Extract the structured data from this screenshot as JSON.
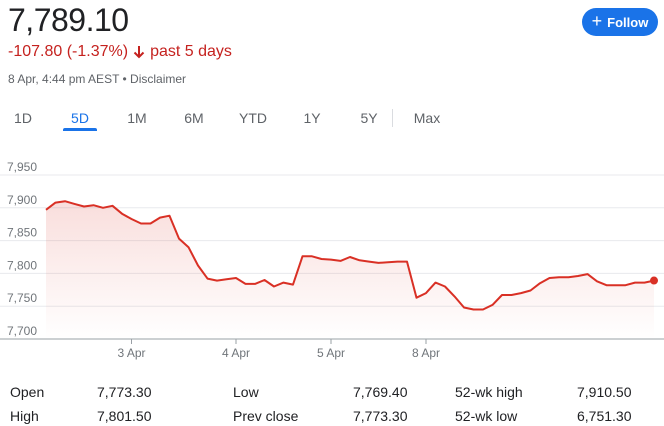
{
  "quote": {
    "price": "7,789.10",
    "change": "-107.80 (-1.37%)",
    "period": "past 5 days",
    "meta": "8 Apr, 4:44 pm AEST • Disclaimer"
  },
  "follow_button": {
    "label": "Follow"
  },
  "tabs": [
    {
      "label": "1D",
      "active": false
    },
    {
      "label": "5D",
      "active": true
    },
    {
      "label": "1M",
      "active": false
    },
    {
      "label": "6M",
      "active": false
    },
    {
      "label": "YTD",
      "active": false
    },
    {
      "label": "1Y",
      "active": false
    },
    {
      "label": "5Y",
      "active": false
    },
    {
      "label": "Max",
      "active": false
    }
  ],
  "colors": {
    "accent": "#1a73e8",
    "negative": "#c5221f",
    "line": "#d93025"
  },
  "chart_data": {
    "type": "area",
    "ylim": [
      7700,
      7950
    ],
    "y_ticks": [
      "7,950",
      "7,900",
      "7,850",
      "7,800",
      "7,750",
      "7,700"
    ],
    "x_tick_labels": [
      "3 Apr",
      "4 Apr",
      "5 Apr",
      "8 Apr"
    ],
    "x_tick_positions": [
      9,
      20,
      30,
      40
    ],
    "grid": true,
    "series": [
      {
        "values": [
          7897,
          7908,
          7910,
          7906,
          7902,
          7904,
          7900,
          7903,
          7891,
          7883,
          7876,
          7876,
          7885,
          7888,
          7853,
          7840,
          7812,
          7792,
          7789,
          7791,
          7793,
          7784,
          7784,
          7790,
          7780,
          7786,
          7783,
          7826,
          7826,
          7822,
          7821,
          7819,
          7825,
          7820,
          7818,
          7816,
          7817,
          7818,
          7818,
          7763,
          7770,
          7786,
          7780,
          7765,
          7748,
          7745,
          7745,
          7752,
          7767,
          7767,
          7770,
          7774,
          7785,
          7793,
          7794,
          7794,
          7796,
          7799,
          7788,
          7782,
          7782,
          7782,
          7786,
          7786,
          7789
        ]
      }
    ],
    "last_point": 7789.1
  },
  "stats": [
    {
      "label": "Open",
      "value": "7,773.30"
    },
    {
      "label": "High",
      "value": "7,801.50"
    },
    {
      "label": "Low",
      "value": "7,769.40"
    },
    {
      "label": "Prev close",
      "value": "7,773.30"
    },
    {
      "label": "52-wk high",
      "value": "7,910.50"
    },
    {
      "label": "52-wk low",
      "value": "6,751.30"
    }
  ]
}
